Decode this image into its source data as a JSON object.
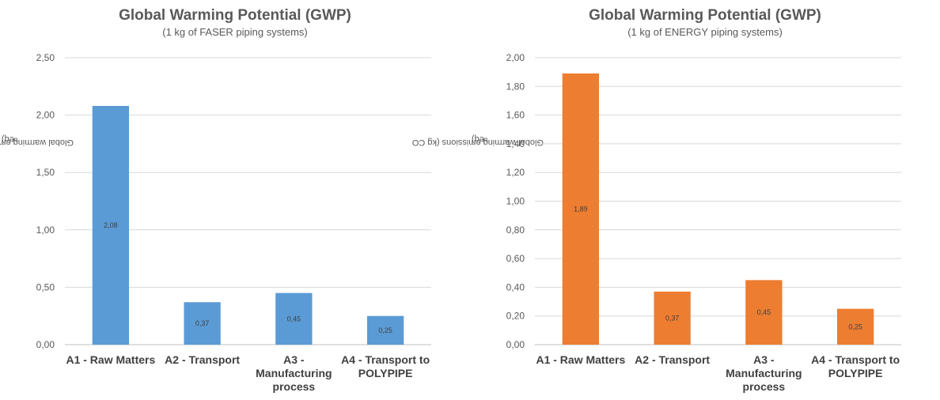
{
  "chart_data": [
    {
      "type": "bar",
      "title": "Global Warming Potential (GWP)",
      "subtitle": "(1 kg of FASER piping systems)",
      "ylabel": {
        "text": "Global warming emissions (kg CO",
        "sub": "2",
        "tail": " eq)"
      },
      "xlabel": "",
      "categories": [
        [
          "A1 - Raw Matters"
        ],
        [
          "A2 - Transport"
        ],
        [
          "A3 -",
          "Manufacturing",
          "process"
        ],
        [
          "A4 - Transport to",
          "POLYPIPE"
        ]
      ],
      "values": [
        2.08,
        0.37,
        0.45,
        0.25
      ],
      "value_labels": [
        "2,08",
        "0,37",
        "0,45",
        "0,25"
      ],
      "ylim": [
        0,
        2.5
      ],
      "yticks": [
        0,
        0.5,
        1.0,
        1.5,
        2.0,
        2.5
      ],
      "ytick_labels": [
        "0,00",
        "0,50",
        "1,00",
        "1,50",
        "2,00",
        "2,50"
      ],
      "bar_color": "#5B9BD5",
      "grid": true,
      "legend": "none"
    },
    {
      "type": "bar",
      "title": "Global Warming Potential (GWP)",
      "subtitle": "(1 kg of ENERGY piping systems)",
      "ylabel": {
        "text": "Global warming emissions (kg CO",
        "sub": "2",
        "tail": " eq)"
      },
      "xlabel": "",
      "categories": [
        [
          "A1 - Raw Matters"
        ],
        [
          "A2 - Transport"
        ],
        [
          "A3 -",
          "Manufacturing",
          "process"
        ],
        [
          "A4 - Transport to",
          "POLYPIPE"
        ]
      ],
      "values": [
        1.89,
        0.37,
        0.45,
        0.25
      ],
      "value_labels": [
        "1,89",
        "0,37",
        "0,45",
        "0,25"
      ],
      "ylim": [
        0,
        2.0
      ],
      "yticks": [
        0,
        0.2,
        0.4,
        0.6,
        0.8,
        1.0,
        1.2,
        1.4,
        1.6,
        1.8,
        2.0
      ],
      "ytick_labels": [
        "0,00",
        "0,20",
        "0,40",
        "0,60",
        "0,80",
        "1,00",
        "1,20",
        "1,40",
        "1,60",
        "1,80",
        "2,00"
      ],
      "bar_color": "#ED7D31",
      "grid": true,
      "legend": "none"
    }
  ]
}
